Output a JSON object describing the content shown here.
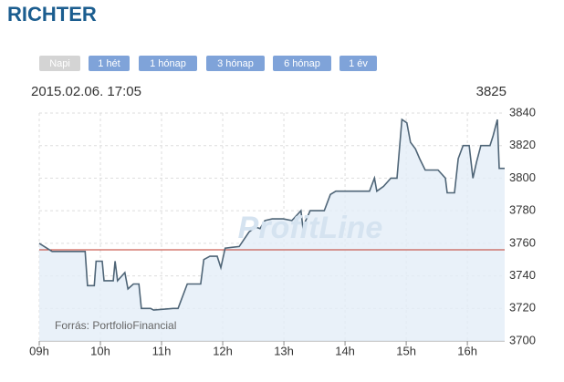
{
  "header": {
    "title": "RICHTER"
  },
  "buttons": [
    {
      "label": "Napi",
      "active": true
    },
    {
      "label": "1 hét"
    },
    {
      "label": "1 hónap"
    },
    {
      "label": "3 hónap"
    },
    {
      "label": "6 hónap"
    },
    {
      "label": "1 év"
    }
  ],
  "info": {
    "datetime": "2015.02.06. 17:05",
    "last": "3825"
  },
  "chart_data": {
    "type": "line",
    "x": [
      9.0,
      9.21,
      9.75,
      9.79,
      9.9,
      9.93,
      10.03,
      10.06,
      10.21,
      10.24,
      10.28,
      10.4,
      10.45,
      10.54,
      10.63,
      10.67,
      10.82,
      10.87,
      11.19,
      11.27,
      11.42,
      11.64,
      11.69,
      11.79,
      11.91,
      11.97,
      12.04,
      12.27,
      12.43,
      12.54,
      12.61,
      12.69,
      12.81,
      12.99,
      13.13,
      13.28,
      13.31,
      13.43,
      13.66,
      13.76,
      13.85,
      14.4,
      14.48,
      14.52,
      14.63,
      14.75,
      14.85,
      14.93,
      15.01,
      15.07,
      15.15,
      15.22,
      15.31,
      15.52,
      15.64,
      15.67,
      15.79,
      15.85,
      15.93,
      16.03,
      16.09,
      16.15,
      16.22,
      16.37,
      16.42,
      16.49,
      16.52,
      16.61
    ],
    "values": [
      3760,
      3755,
      3755,
      3734,
      3734,
      3749,
      3749,
      3737,
      3737,
      3749,
      3737,
      3742,
      3732,
      3735,
      3735,
      3720,
      3720,
      3719,
      3720,
      3720,
      3735,
      3735,
      3750,
      3752,
      3752,
      3745,
      3757,
      3758,
      3767,
      3770,
      3769,
      3774,
      3775,
      3775,
      3774,
      3780,
      3770,
      3780,
      3780,
      3790,
      3792,
      3792,
      3800,
      3792,
      3795,
      3800,
      3800,
      3836,
      3834,
      3822,
      3818,
      3812,
      3805,
      3805,
      3800,
      3791,
      3791,
      3812,
      3820,
      3820,
      3800,
      3810,
      3820,
      3820,
      3826,
      3836,
      3806,
      3806
    ],
    "color": "#4f6577",
    "fill_color": "#e3edf7",
    "xlim": [
      9,
      16.61
    ],
    "xticks": [
      {
        "value": 9,
        "label": "09h"
      },
      {
        "value": 10,
        "label": "10h"
      },
      {
        "value": 11,
        "label": "11h"
      },
      {
        "value": 12,
        "label": "12h"
      },
      {
        "value": 13,
        "label": "13h"
      },
      {
        "value": 14,
        "label": "14h"
      },
      {
        "value": 15,
        "label": "15h"
      },
      {
        "value": 16,
        "label": "16h"
      }
    ],
    "ylim": [
      3700,
      3840
    ],
    "yticks": [
      3700,
      3720,
      3740,
      3760,
      3780,
      3800,
      3820,
      3840
    ],
    "reference_line": 3756,
    "reference_color": "#c0392b",
    "grid": true,
    "source": "Forrás: PortfolioFinancial",
    "watermark": "ProfitLine"
  }
}
